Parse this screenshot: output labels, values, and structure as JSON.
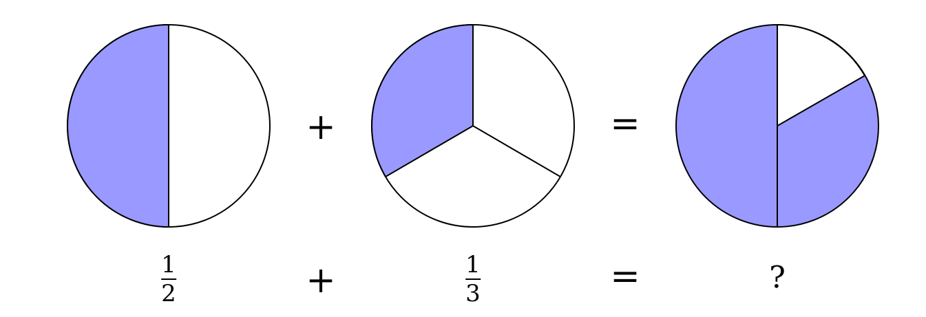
{
  "colors": {
    "fill": "#9999ff",
    "stroke": "#000000",
    "empty": "#ffffff"
  },
  "pies": [
    {
      "slices": 2,
      "shaded": 1
    },
    {
      "slices": 3,
      "shaded": 1
    },
    {
      "shaded_fraction": "5/6"
    }
  ],
  "operators": {
    "plus": "+",
    "equals": "="
  },
  "labels": {
    "first": {
      "numerator": "1",
      "denominator": "2"
    },
    "second": {
      "numerator": "1",
      "denominator": "3"
    },
    "result": "?"
  }
}
